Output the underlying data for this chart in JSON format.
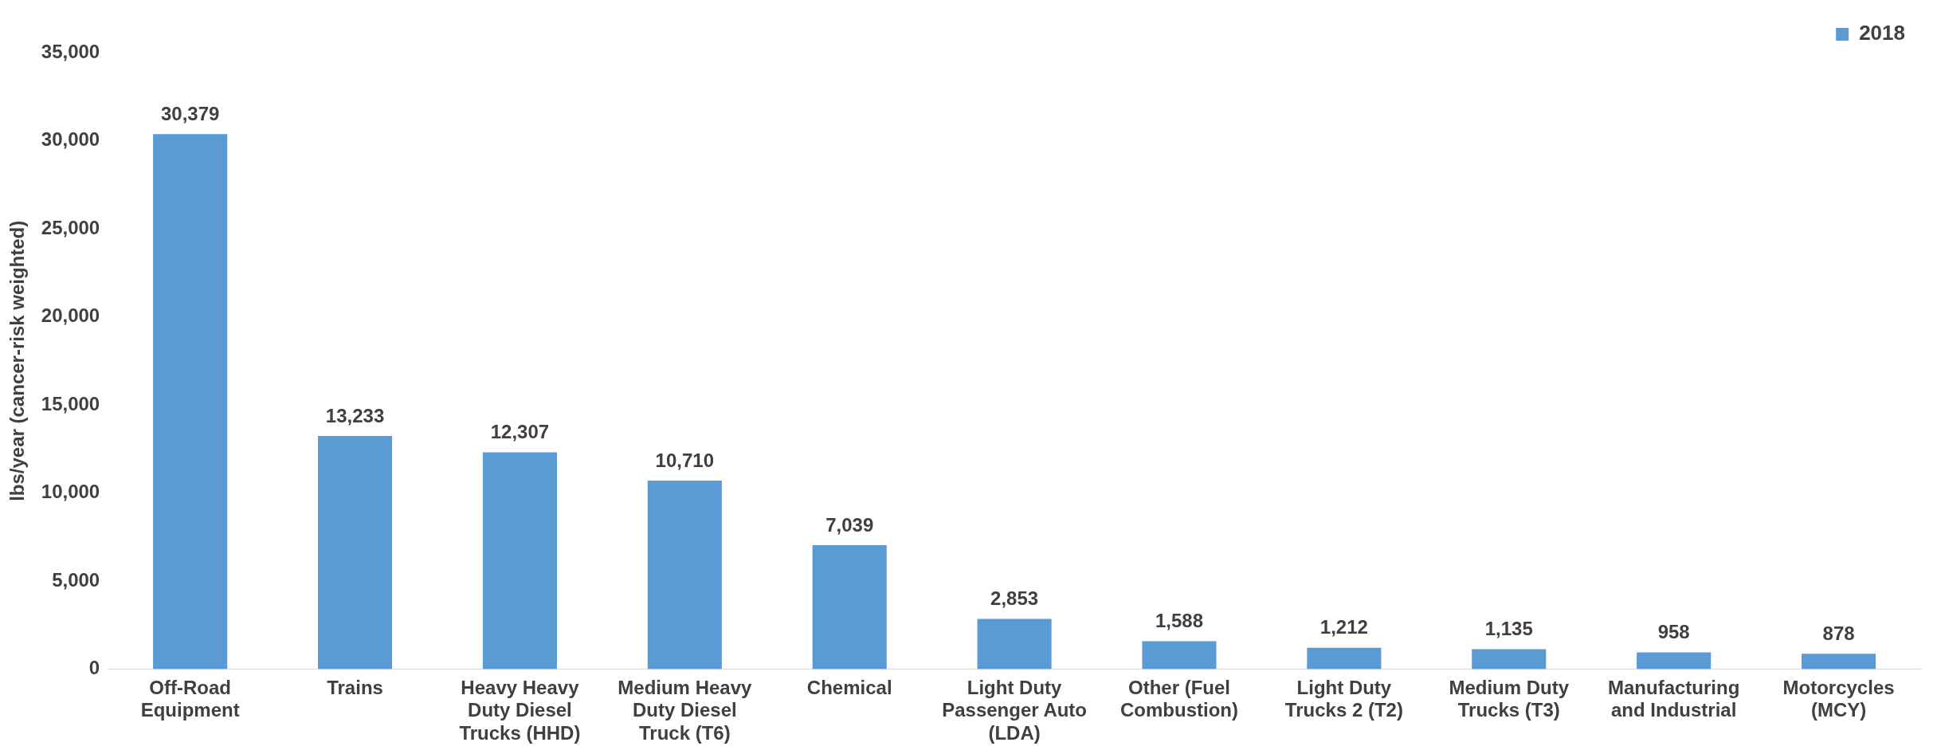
{
  "chart_data": {
    "type": "bar",
    "ylabel": "lbs/year (cancer-risk weighted)",
    "categories": [
      "Off-Road Equipment",
      "Trains",
      "Heavy Heavy Duty Diesel Trucks (HHD)",
      "Medium Heavy Duty Diesel Truck (T6)",
      "Chemical",
      "Light Duty Passenger Auto (LDA)",
      "Other (Fuel Combustion)",
      "Light Duty Trucks 2 (T2)",
      "Medium Duty Trucks (T3)",
      "Manufacturing and Industrial",
      "Motorcycles (MCY)"
    ],
    "series": [
      {
        "name": "2018",
        "color": "#5b9bd5",
        "values": [
          30379,
          13233,
          12307,
          10710,
          7039,
          2853,
          1588,
          1212,
          1135,
          958,
          878
        ],
        "value_labels": [
          "30,379",
          "13,233",
          "12,307",
          "10,710",
          "7,039",
          "2,853",
          "1,588",
          "1,212",
          "1,135",
          "958",
          "878"
        ]
      }
    ],
    "ylim": [
      0,
      35000
    ],
    "yticks": [
      0,
      {
        "value": 5000,
        "label": "5,000"
      },
      {
        "value": 10000,
        "label": "10,000"
      },
      {
        "value": 15000,
        "label": "15,000"
      },
      {
        "value": 20000,
        "label": "20,000"
      },
      {
        "value": 25000,
        "label": "25,000"
      },
      {
        "value": 30000,
        "label": "30,000"
      },
      {
        "value": 35000,
        "label": "35,000"
      }
    ],
    "grid": false,
    "legend": "top right"
  }
}
